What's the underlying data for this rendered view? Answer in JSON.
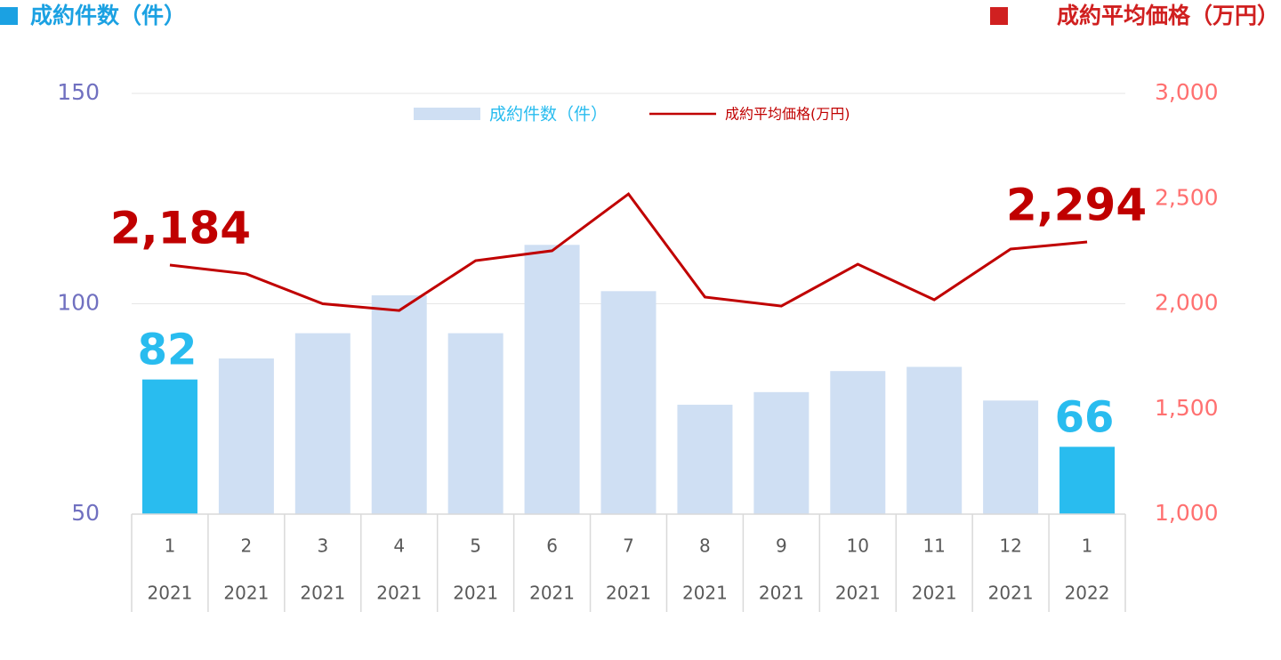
{
  "chart_data": {
    "type": "bar_line",
    "y_title": "成約件数（件）",
    "y2_title": "成約平均価格（万円）",
    "categories": [
      "1",
      "2",
      "3",
      "4",
      "5",
      "6",
      "7",
      "8",
      "9",
      "10",
      "11",
      "12",
      "1"
    ],
    "years": [
      "2021",
      "2021",
      "2021",
      "2021",
      "2021",
      "2021",
      "2021",
      "2021",
      "2021",
      "2021",
      "2021",
      "2021",
      "2022"
    ],
    "series": [
      {
        "name": "成約件数（件）",
        "type": "bar",
        "color": "#CFDFF3",
        "colors": [
          "#29BCEF",
          "#CFDFF3",
          "#CFDFF3",
          "#CFDFF3",
          "#CFDFF3",
          "#CFDFF3",
          "#CFDFF3",
          "#CFDFF3",
          "#CFDFF3",
          "#CFDFF3",
          "#CFDFF3",
          "#CFDFF3",
          "#29BCEF"
        ],
        "label_color": "#29BCEF",
        "values": [
          82,
          87,
          93,
          102,
          93,
          114,
          103,
          76,
          79,
          84,
          85,
          77,
          66
        ],
        "value_labels": [
          "82",
          null,
          null,
          null,
          null,
          null,
          null,
          null,
          null,
          null,
          null,
          null,
          "66"
        ]
      },
      {
        "name": "成約平均価格(万円)",
        "type": "line",
        "axis": "y2",
        "color": "#C00000",
        "values": [
          2184,
          2142,
          2000,
          1968,
          2205,
          2252,
          2522,
          2032,
          1989,
          2188,
          2019,
          2260,
          2294
        ],
        "value_labels": [
          "2,184",
          null,
          null,
          null,
          null,
          null,
          null,
          null,
          null,
          null,
          null,
          null,
          "2,294"
        ]
      }
    ],
    "ylim": [
      50,
      150
    ],
    "yticks": [
      50,
      100,
      150
    ],
    "y2lim": [
      1000,
      3000
    ],
    "y2ticks": [
      {
        "value": 1000,
        "label": "1,000"
      },
      {
        "value": 1500,
        "label": "1,500"
      },
      {
        "value": 2000,
        "label": "2,000"
      },
      {
        "value": 2500,
        "label": "2,500"
      },
      {
        "value": 3000,
        "label": "3,000"
      }
    ],
    "grid": true,
    "legend": "top"
  }
}
